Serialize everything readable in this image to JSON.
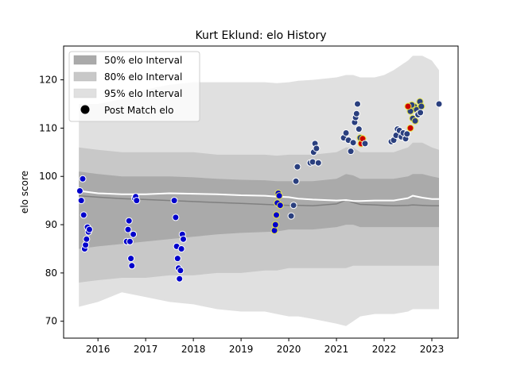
{
  "chart_data": {
    "type": "scatter",
    "title": "Kurt Eklund: elo History",
    "xlabel": "",
    "ylabel": "elo score",
    "xlim": [
      2015.28,
      2023.55
    ],
    "ylim": [
      66.5,
      127
    ],
    "xticks": [
      2016,
      2017,
      2018,
      2019,
      2020,
      2021,
      2022,
      2023
    ],
    "yticks": [
      70,
      80,
      90,
      100,
      110,
      120
    ],
    "grid": false,
    "legend": {
      "placement": "top-left",
      "entries": [
        "50% elo Interval",
        "80% elo Interval",
        "95% elo Interval",
        "Post Match elo"
      ]
    },
    "colors": {
      "band95": "#e0e0e0",
      "band80": "#c8c8c8",
      "band50": "#aaaaaa",
      "median_line": "#808080",
      "mean_line": "#ffffff",
      "point_blue": "#0000cc",
      "point_navy": "#2a3f7e",
      "edge_white": "#ffffff",
      "edge_yellow": "#e8e84a",
      "point_red": "#cc0000"
    },
    "bands": {
      "x": [
        2015.6,
        2016.0,
        2016.5,
        2017.0,
        2017.5,
        2018.0,
        2018.5,
        2019.0,
        2019.5,
        2019.75,
        2020.0,
        2020.2,
        2020.5,
        2021.0,
        2021.2,
        2021.35,
        2021.5,
        2021.8,
        2022.0,
        2022.2,
        2022.5,
        2022.6,
        2022.8,
        2023.0,
        2023.15
      ],
      "p95_upper": [
        115,
        115,
        116,
        118,
        119,
        119.5,
        119.5,
        119.5,
        119.5,
        119.3,
        119.5,
        119.8,
        120,
        120.5,
        121,
        121,
        120.5,
        120.5,
        121,
        122,
        124,
        125,
        125,
        124,
        122
      ],
      "p95_lower": [
        73,
        74,
        76,
        75,
        74,
        73.5,
        72.5,
        72,
        72,
        71.5,
        71,
        71,
        70.5,
        69.5,
        69,
        70,
        71,
        71.5,
        71.5,
        71.5,
        72,
        72.5,
        72.5,
        72.5,
        72.5
      ],
      "p80_upper": [
        106,
        105.5,
        105,
        105,
        105,
        105,
        104.5,
        104.5,
        104.5,
        104.3,
        104.5,
        104.5,
        104.5,
        105,
        106,
        106,
        105,
        105,
        105,
        105,
        106,
        107,
        107,
        106,
        105.5
      ],
      "p80_lower": [
        78,
        78.5,
        79,
        79,
        79.5,
        79.5,
        80,
        80,
        80.5,
        80.5,
        81,
        81,
        81,
        81,
        81,
        81.5,
        81.5,
        81.5,
        81.5,
        81.5,
        81.5,
        81.5,
        81.5,
        81.5,
        81.5
      ],
      "p50_upper": [
        101,
        100.5,
        100,
        100,
        100,
        99.8,
        99.5,
        99.3,
        99.2,
        99,
        99,
        99,
        99,
        99.5,
        100.5,
        100.2,
        99.5,
        99.5,
        99.5,
        99.5,
        100,
        100.5,
        100.5,
        100,
        99.7
      ],
      "p50_lower": [
        85,
        85.5,
        86,
        86.5,
        87,
        87.5,
        88,
        88.3,
        88.5,
        88.6,
        89,
        89,
        89,
        89.5,
        90,
        90,
        89.5,
        89.5,
        89.5,
        89.5,
        89.5,
        89.5,
        89.5,
        89.5,
        89.5
      ],
      "median": [
        96,
        95.7,
        95.4,
        95.2,
        95,
        94.8,
        94.6,
        94.4,
        94.2,
        94.1,
        94,
        94,
        93.9,
        94.3,
        95.1,
        94.6,
        94.2,
        94.1,
        94,
        93.9,
        94,
        94.1,
        94,
        93.9,
        93.9
      ],
      "mean": [
        97,
        96.5,
        96.3,
        96.3,
        96.5,
        96.4,
        96.3,
        96.1,
        96,
        95.8,
        95.7,
        95.4,
        95.2,
        95,
        95.1,
        94.9,
        94.9,
        95,
        95,
        95,
        95.5,
        96,
        95.6,
        95.3,
        95.3
      ]
    },
    "series": [
      {
        "name": "Post Match elo",
        "groups": [
          {
            "fill": "point_blue",
            "edge": "edge_white",
            "points": [
              [
                2015.62,
                97
              ],
              [
                2015.65,
                95
              ],
              [
                2015.68,
                99.5
              ],
              [
                2015.7,
                92
              ],
              [
                2015.72,
                85
              ],
              [
                2015.74,
                85.8
              ],
              [
                2015.76,
                87
              ],
              [
                2015.78,
                89.5
              ],
              [
                2015.8,
                88.5
              ],
              [
                2015.82,
                89
              ],
              [
                2016.6,
                86.5
              ],
              [
                2016.63,
                89
              ],
              [
                2016.65,
                90.8
              ],
              [
                2016.67,
                86.5
              ],
              [
                2016.69,
                83
              ],
              [
                2016.71,
                81.5
              ],
              [
                2016.74,
                88
              ],
              [
                2016.77,
                95.5
              ],
              [
                2016.79,
                95.8
              ],
              [
                2016.81,
                95
              ],
              [
                2017.6,
                95
              ],
              [
                2017.63,
                91.5
              ],
              [
                2017.65,
                85.5
              ],
              [
                2017.67,
                83
              ],
              [
                2017.69,
                81
              ],
              [
                2017.71,
                78.8
              ],
              [
                2017.73,
                80.5
              ],
              [
                2017.75,
                85
              ],
              [
                2017.77,
                88
              ],
              [
                2017.79,
                87
              ]
            ]
          },
          {
            "fill": "point_blue",
            "edge": "edge_yellow",
            "points": [
              [
                2019.7,
                88.8
              ],
              [
                2019.72,
                90
              ],
              [
                2019.74,
                92
              ],
              [
                2019.76,
                94.5
              ],
              [
                2019.78,
                96.5
              ],
              [
                2019.8,
                96
              ],
              [
                2019.82,
                94
              ]
            ]
          },
          {
            "fill": "point_navy",
            "edge": "edge_white",
            "points": [
              [
                2020.05,
                91.8
              ],
              [
                2020.1,
                94
              ],
              [
                2020.15,
                99
              ],
              [
                2020.18,
                102
              ],
              [
                2020.45,
                102.8
              ],
              [
                2020.5,
                103
              ],
              [
                2020.52,
                105
              ],
              [
                2020.55,
                106.8
              ],
              [
                2020.58,
                105.8
              ],
              [
                2020.62,
                102.8
              ],
              [
                2021.15,
                108
              ],
              [
                2021.2,
                109
              ],
              [
                2021.25,
                107.5
              ],
              [
                2021.3,
                105.2
              ],
              [
                2021.35,
                107
              ],
              [
                2021.38,
                111.2
              ],
              [
                2021.4,
                112.2
              ],
              [
                2021.42,
                113
              ],
              [
                2021.44,
                115
              ],
              [
                2021.47,
                109.8
              ],
              [
                2022.15,
                107.2
              ],
              [
                2022.2,
                107.5
              ],
              [
                2022.25,
                108.5
              ],
              [
                2022.28,
                109.8
              ],
              [
                2022.32,
                109.5
              ],
              [
                2022.36,
                108.2
              ],
              [
                2022.4,
                109
              ],
              [
                2022.45,
                107.8
              ],
              [
                2022.48,
                108.8
              ],
              [
                2023.15,
                115
              ]
            ]
          },
          {
            "fill": "point_navy",
            "edge": "edge_yellow",
            "points": [
              [
                2021.5,
                108
              ],
              [
                2022.55,
                113.5
              ],
              [
                2022.6,
                112
              ],
              [
                2022.63,
                114.5
              ],
              [
                2022.65,
                111.5
              ],
              [
                2022.68,
                113.8
              ],
              [
                2022.72,
                113
              ],
              [
                2022.75,
                115.5
              ],
              [
                2022.78,
                114.5
              ],
              [
                2022.58,
                114.8
              ]
            ]
          },
          {
            "fill": "point_red",
            "edge": "edge_yellow",
            "points": [
              [
                2021.52,
                106.8
              ],
              [
                2021.55,
                107.8
              ],
              [
                2022.5,
                114.5
              ],
              [
                2022.55,
                110
              ]
            ]
          },
          {
            "fill": "point_navy",
            "edge": "edge_white",
            "points": [
              [
                2021.6,
                106.8
              ],
              [
                2022.71,
                112.8
              ],
              [
                2022.76,
                113.2
              ]
            ]
          }
        ]
      }
    ]
  }
}
